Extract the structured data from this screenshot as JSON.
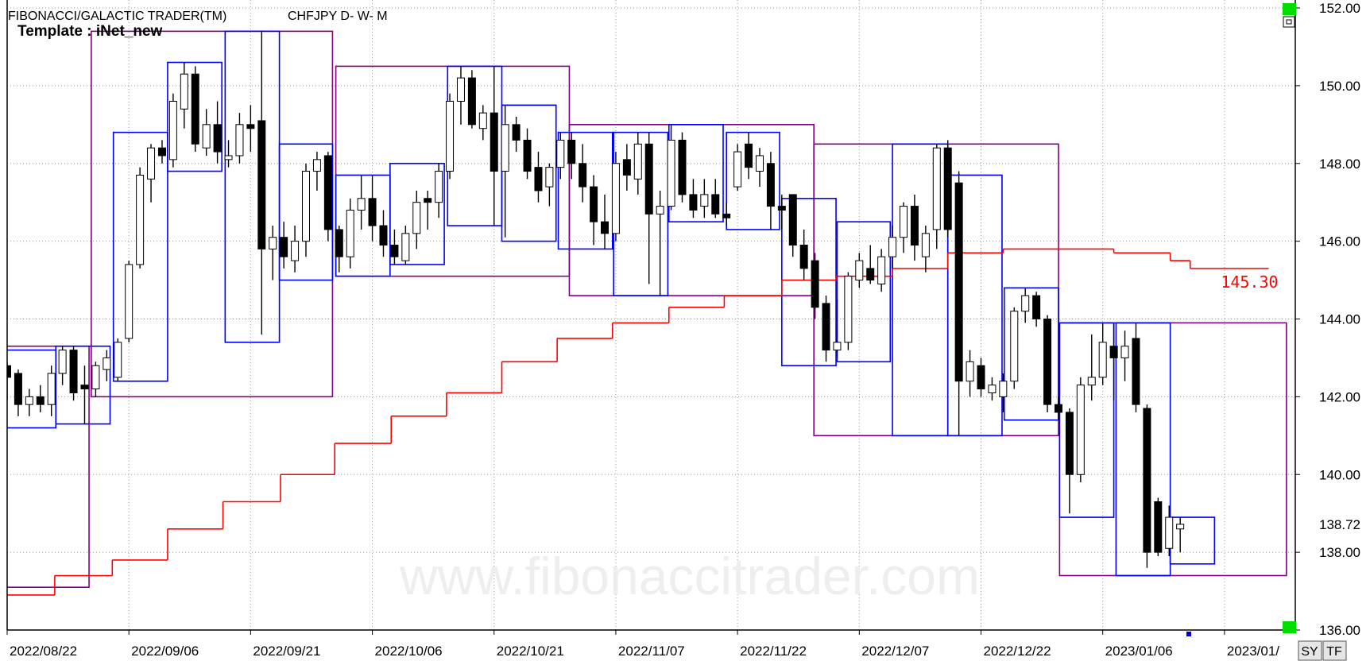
{
  "chart_data": {
    "type": "candlestick",
    "title": "FIBONACCI/GALACTIC TRADER(TM)",
    "subtitle": "CHFJPY D- W- M",
    "template": "Template : iNet_new",
    "watermark": "www.fibonaccitrader.com",
    "buttons": [
      "SY",
      "TF"
    ],
    "xlim": [
      0,
      116.4
    ],
    "ylim": [
      136,
      152
    ],
    "grid": true,
    "up_color": "#ffffff",
    "down_color": "#000000",
    "xticks": [
      {
        "value": 0,
        "label": "2022/08/22"
      },
      {
        "value": 11,
        "label": "2022/09/06"
      },
      {
        "value": 22,
        "label": "2022/09/21"
      },
      {
        "value": 33,
        "label": "2022/10/06"
      },
      {
        "value": 44,
        "label": "2022/10/21"
      },
      {
        "value": 55,
        "label": "2022/11/07"
      },
      {
        "value": 66,
        "label": "2022/11/22"
      },
      {
        "value": 77,
        "label": "2022/12/07"
      },
      {
        "value": 88,
        "label": "2022/12/22"
      },
      {
        "value": 99,
        "label": "2023/01/06"
      },
      {
        "value": 110,
        "label": "2023/01/"
      }
    ],
    "yticks": [
      {
        "value": 136,
        "label": "136.00"
      },
      {
        "value": 138,
        "label": "138.00"
      },
      {
        "value": 140,
        "label": "140.00"
      },
      {
        "value": 142,
        "label": "142.00"
      },
      {
        "value": 144,
        "label": "144.00"
      },
      {
        "value": 146,
        "label": "146.00"
      },
      {
        "value": 148,
        "label": "148.00"
      },
      {
        "value": 150,
        "label": "150.00"
      },
      {
        "value": 152,
        "label": "152.00"
      }
    ],
    "last_close_label": "138.72",
    "candles": [
      [
        142.8,
        142.9,
        141.9,
        142.5
      ],
      [
        142.6,
        142.7,
        141.5,
        141.8
      ],
      [
        141.8,
        142.2,
        141.5,
        142.0
      ],
      [
        142.0,
        142.3,
        141.6,
        141.8
      ],
      [
        141.8,
        142.8,
        141.5,
        142.6
      ],
      [
        142.6,
        143.3,
        142.3,
        143.2
      ],
      [
        143.2,
        143.3,
        141.9,
        142.1
      ],
      [
        142.3,
        142.8,
        141.3,
        142.2
      ],
      [
        142.2,
        142.9,
        142.0,
        142.8
      ],
      [
        142.7,
        143.2,
        142.4,
        143.0
      ],
      [
        142.5,
        143.5,
        142.4,
        143.4
      ],
      [
        143.5,
        145.5,
        143.4,
        145.4
      ],
      [
        145.4,
        147.9,
        145.3,
        147.7
      ],
      [
        147.6,
        148.5,
        147.0,
        148.4
      ],
      [
        148.4,
        148.6,
        148.0,
        148.2
      ],
      [
        148.1,
        149.8,
        147.9,
        149.6
      ],
      [
        149.4,
        150.6,
        148.9,
        150.3
      ],
      [
        150.3,
        150.5,
        148.3,
        148.5
      ],
      [
        148.4,
        149.4,
        148.2,
        149.0
      ],
      [
        149.0,
        149.6,
        148.0,
        148.3
      ],
      [
        148.1,
        148.6,
        147.9,
        148.2
      ],
      [
        148.2,
        149.3,
        148.0,
        149.0
      ],
      [
        149.0,
        149.5,
        148.3,
        148.9
      ],
      [
        149.1,
        151.4,
        143.6,
        145.8
      ],
      [
        145.8,
        146.4,
        145.0,
        146.1
      ],
      [
        146.1,
        146.5,
        145.3,
        145.6
      ],
      [
        145.5,
        146.4,
        145.2,
        146.0
      ],
      [
        146.0,
        148.0,
        145.6,
        147.8
      ],
      [
        147.8,
        148.3,
        147.3,
        148.1
      ],
      [
        148.2,
        148.3,
        146.0,
        146.3
      ],
      [
        146.3,
        146.4,
        145.2,
        145.6
      ],
      [
        145.6,
        147.1,
        145.3,
        146.8
      ],
      [
        146.8,
        147.7,
        146.3,
        147.1
      ],
      [
        147.1,
        147.7,
        146.0,
        146.4
      ],
      [
        146.4,
        146.8,
        145.6,
        145.9
      ],
      [
        145.9,
        146.3,
        145.4,
        145.6
      ],
      [
        145.5,
        146.4,
        145.4,
        146.2
      ],
      [
        146.2,
        147.3,
        145.8,
        147.0
      ],
      [
        147.1,
        147.3,
        146.3,
        147.0
      ],
      [
        147.0,
        148.0,
        146.6,
        147.8
      ],
      [
        147.8,
        149.8,
        147.6,
        149.6
      ],
      [
        149.6,
        150.5,
        149.0,
        150.2
      ],
      [
        150.2,
        150.4,
        148.9,
        149.0
      ],
      [
        148.9,
        149.5,
        148.6,
        149.3
      ],
      [
        149.3,
        150.5,
        146.4,
        147.8
      ],
      [
        147.8,
        149.5,
        146.1,
        149.0
      ],
      [
        149.0,
        149.2,
        148.3,
        148.6
      ],
      [
        148.6,
        148.9,
        147.6,
        147.8
      ],
      [
        147.9,
        148.3,
        147.0,
        147.3
      ],
      [
        147.4,
        148.0,
        146.9,
        147.9
      ],
      [
        147.9,
        148.8,
        147.6,
        148.6
      ],
      [
        148.6,
        148.8,
        147.6,
        148.0
      ],
      [
        148.0,
        148.5,
        147.0,
        147.4
      ],
      [
        147.4,
        147.7,
        145.9,
        146.5
      ],
      [
        146.5,
        147.2,
        145.8,
        146.2
      ],
      [
        146.2,
        148.3,
        146.0,
        148.0
      ],
      [
        148.1,
        148.5,
        147.3,
        147.7
      ],
      [
        147.6,
        148.8,
        147.2,
        148.5
      ],
      [
        148.5,
        148.8,
        144.9,
        146.7
      ],
      [
        146.7,
        147.3,
        144.6,
        146.9
      ],
      [
        146.9,
        149.0,
        146.8,
        148.6
      ],
      [
        148.6,
        148.8,
        147.0,
        147.2
      ],
      [
        147.2,
        147.6,
        146.6,
        146.8
      ],
      [
        146.9,
        147.6,
        146.6,
        147.2
      ],
      [
        147.2,
        147.6,
        146.6,
        146.7
      ],
      [
        146.7,
        147.0,
        146.4,
        146.6
      ],
      [
        147.4,
        148.5,
        147.3,
        148.3
      ],
      [
        148.5,
        148.8,
        147.6,
        147.9
      ],
      [
        147.8,
        148.4,
        147.4,
        148.2
      ],
      [
        148.0,
        148.3,
        146.3,
        146.9
      ],
      [
        146.9,
        147.2,
        146.3,
        146.8
      ],
      [
        147.2,
        147.2,
        145.6,
        145.9
      ],
      [
        145.9,
        146.3,
        145.0,
        145.3
      ],
      [
        145.5,
        145.7,
        144.0,
        144.3
      ],
      [
        144.4,
        144.6,
        142.9,
        143.2
      ],
      [
        143.2,
        144.5,
        143.0,
        143.4
      ],
      [
        143.4,
        145.2,
        143.2,
        145.1
      ],
      [
        145.0,
        145.7,
        144.8,
        145.5
      ],
      [
        145.3,
        145.9,
        144.9,
        145.0
      ],
      [
        144.9,
        145.8,
        144.7,
        145.6
      ],
      [
        145.6,
        146.4,
        145.3,
        146.1
      ],
      [
        146.1,
        147.0,
        145.7,
        146.9
      ],
      [
        146.9,
        147.2,
        145.5,
        145.9
      ],
      [
        145.6,
        146.4,
        145.2,
        146.2
      ],
      [
        146.3,
        148.5,
        145.8,
        148.4
      ],
      [
        148.4,
        148.6,
        146.1,
        146.3
      ],
      [
        147.5,
        147.8,
        141.0,
        142.4
      ],
      [
        142.4,
        143.2,
        142.0,
        142.9
      ],
      [
        142.8,
        143.0,
        142.0,
        142.2
      ],
      [
        142.1,
        142.5,
        141.9,
        142.3
      ],
      [
        142.0,
        142.6,
        141.6,
        142.4
      ],
      [
        142.4,
        144.3,
        142.2,
        144.2
      ],
      [
        144.2,
        144.8,
        143.9,
        144.6
      ],
      [
        144.6,
        144.7,
        143.8,
        144.0
      ],
      [
        144.0,
        144.1,
        141.6,
        141.8
      ],
      [
        141.8,
        142.0,
        141.4,
        141.6
      ],
      [
        141.6,
        141.7,
        139.0,
        140.0
      ],
      [
        140.0,
        142.5,
        139.8,
        142.3
      ],
      [
        142.3,
        143.6,
        141.9,
        142.5
      ],
      [
        142.5,
        143.9,
        142.3,
        143.4
      ],
      [
        143.3,
        143.9,
        141.9,
        143.0
      ],
      [
        143.0,
        143.7,
        142.4,
        143.3
      ],
      [
        143.5,
        143.9,
        141.6,
        141.8
      ],
      [
        141.7,
        141.8,
        137.6,
        138.0
      ],
      [
        139.3,
        139.4,
        137.9,
        138.0
      ],
      [
        138.1,
        139.2,
        137.9,
        138.9
      ],
      [
        138.6,
        138.9,
        138.0,
        138.72
      ]
    ],
    "weekly_boxes": {
      "color": "#0000ff",
      "ranges": [
        [
          -0.4,
          4.4,
          141.2,
          143.2
        ],
        [
          4.4,
          9.3,
          141.3,
          143.3
        ],
        [
          9.6,
          14.5,
          142.4,
          148.8
        ],
        [
          14.5,
          19.4,
          147.8,
          150.6
        ],
        [
          19.7,
          24.6,
          143.4,
          151.4
        ],
        [
          24.6,
          29.4,
          145.0,
          148.5
        ],
        [
          29.7,
          34.6,
          145.1,
          147.7
        ],
        [
          34.6,
          39.5,
          145.4,
          148.0
        ],
        [
          39.8,
          44.7,
          146.4,
          150.5
        ],
        [
          44.7,
          49.6,
          146.0,
          149.5
        ],
        [
          49.8,
          54.7,
          145.8,
          148.8
        ],
        [
          54.8,
          59.7,
          144.6,
          148.8
        ],
        [
          59.8,
          64.7,
          146.5,
          149.0
        ],
        [
          65.0,
          69.8,
          146.3,
          148.8
        ],
        [
          70.0,
          74.9,
          142.8,
          147.1
        ],
        [
          75.0,
          79.8,
          142.9,
          146.5
        ],
        [
          80.0,
          85.0,
          141.0,
          148.5
        ],
        [
          85.0,
          89.9,
          141.0,
          147.7
        ],
        [
          90.1,
          95.0,
          141.4,
          144.8
        ],
        [
          95.1,
          100.0,
          138.9,
          143.9
        ],
        [
          100.2,
          105.1,
          137.4,
          143.9
        ],
        [
          105.1,
          109.1,
          137.7,
          138.9
        ]
      ]
    },
    "monthly_boxes": {
      "color": "#800080",
      "ranges": [
        [
          -0.6,
          7.4,
          137.1,
          143.3
        ],
        [
          7.6,
          29.4,
          142.0,
          151.4
        ],
        [
          29.7,
          50.8,
          145.1,
          150.5
        ],
        [
          50.8,
          72.9,
          144.6,
          149.0
        ],
        [
          72.9,
          95.0,
          141.0,
          148.5
        ],
        [
          95.1,
          115.6,
          137.4,
          143.9
        ]
      ]
    },
    "pivot_line": {
      "color": "#ff0000",
      "x": [
        0,
        4.3,
        9.5,
        14.5,
        19.5,
        24.7,
        29.6,
        34.7,
        39.7,
        44.7,
        49.7,
        54.7,
        59.8,
        64.8,
        70,
        74.9,
        80,
        85,
        90,
        100,
        105.1,
        106.9,
        114
      ],
      "values": [
        136.9,
        137.4,
        137.8,
        138.6,
        139.3,
        140.0,
        140.8,
        141.5,
        142.1,
        142.9,
        143.5,
        143.9,
        144.3,
        144.6,
        145.0,
        145.1,
        145.3,
        145.7,
        145.8,
        145.7,
        145.5,
        145.3,
        145.3
      ],
      "value_labels": [
        null,
        null,
        null,
        null,
        null,
        null,
        null,
        null,
        null,
        null,
        null,
        null,
        null,
        null,
        null,
        null,
        null,
        null,
        null,
        null,
        null,
        null,
        "145.30"
      ]
    }
  }
}
